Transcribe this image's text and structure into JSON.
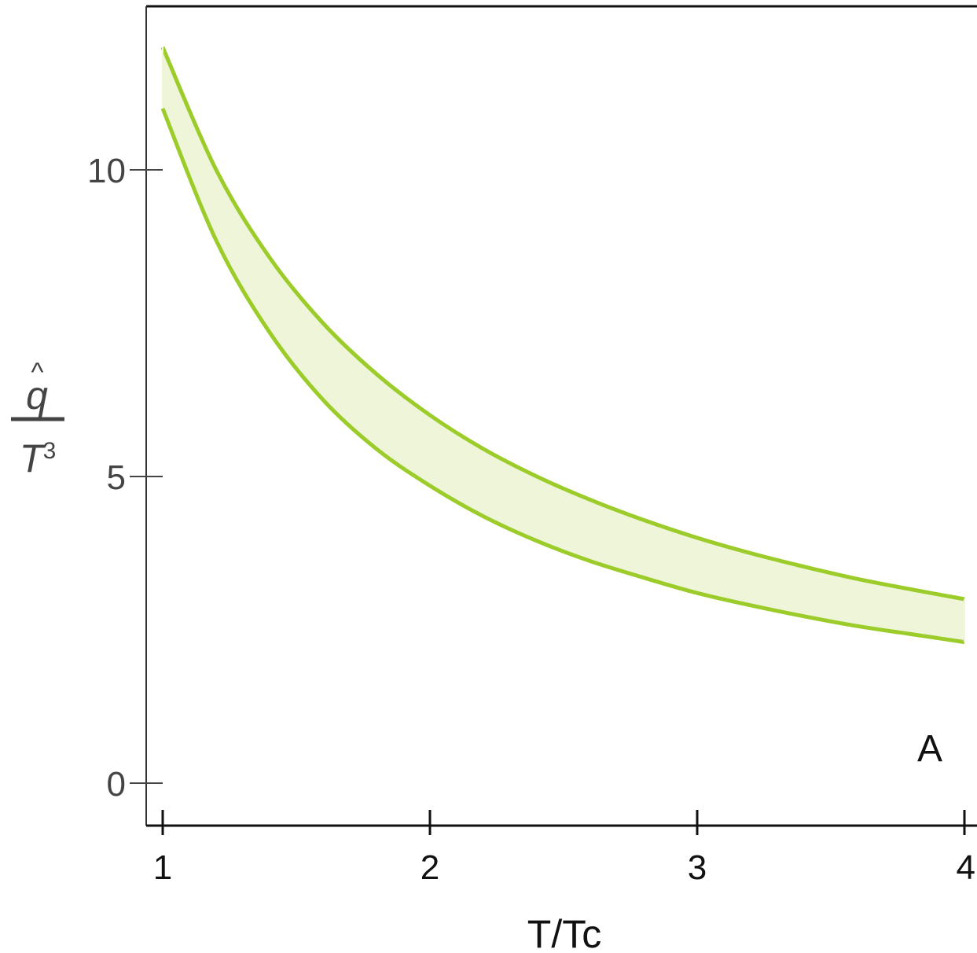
{
  "chart_data": {
    "type": "area",
    "title": "",
    "xlabel": "T/Tc",
    "ylabel": {
      "numerator": "q",
      "accent": "^",
      "denominator": "T",
      "exponent": "3"
    },
    "xlim": [
      0.94,
      4.05
    ],
    "ylim": [
      -0.7,
      12.6
    ],
    "x_ticks": [
      1,
      2,
      3,
      4
    ],
    "y_ticks": [
      0,
      5,
      10
    ],
    "x_tick_labels": [
      "1",
      "2",
      "3",
      "4"
    ],
    "y_tick_labels": [
      "0",
      "5",
      "10"
    ],
    "panel_label": "A",
    "grid": false,
    "series": [
      {
        "role": "upper-bound",
        "x": [
          1.0,
          1.2,
          1.4,
          1.6,
          1.8,
          2.0,
          2.2,
          2.4,
          2.6,
          2.8,
          3.0,
          3.2,
          3.4,
          3.6,
          3.8,
          4.0
        ],
        "values": [
          12.0,
          10.0,
          8.57,
          7.5,
          6.67,
          6.0,
          5.45,
          5.0,
          4.62,
          4.29,
          4.0,
          3.75,
          3.53,
          3.33,
          3.16,
          3.0
        ]
      },
      {
        "role": "lower-bound",
        "x": [
          1.0,
          1.2,
          1.4,
          1.6,
          1.8,
          2.0,
          2.2,
          2.4,
          2.6,
          2.8,
          3.0,
          3.2,
          3.4,
          3.6,
          3.8,
          4.0
        ],
        "values": [
          11.0,
          8.85,
          7.35,
          6.25,
          5.45,
          4.85,
          4.35,
          3.95,
          3.62,
          3.35,
          3.1,
          2.9,
          2.72,
          2.56,
          2.43,
          2.3
        ]
      }
    ],
    "colors": {
      "line": "#9ccc2a",
      "band_fill": "#eef5d8",
      "axis": "#111111",
      "text": "#444444"
    }
  }
}
